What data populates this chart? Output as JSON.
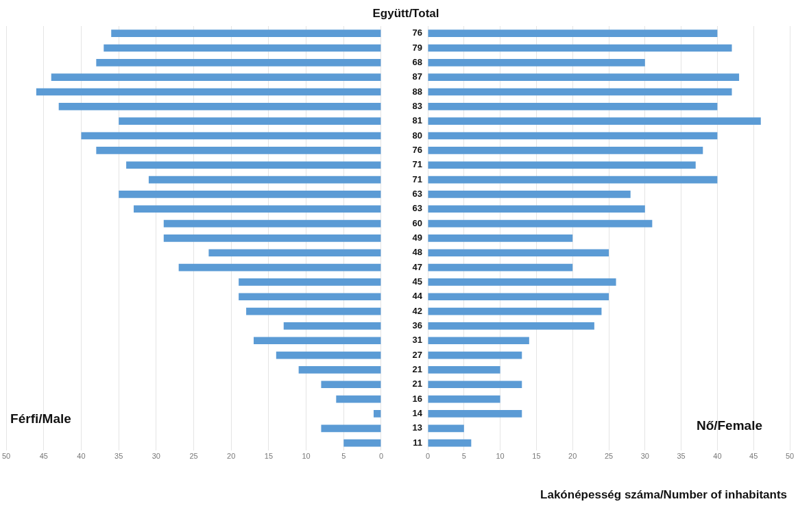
{
  "chart_data": [
    {
      "type": "bar",
      "orientation": "horizontal",
      "tick_labels": "x",
      "grid": "x",
      "categories": [
        "76",
        "79",
        "68",
        "87",
        "88",
        "83",
        "81",
        "80",
        "76",
        "71",
        "71",
        "63",
        "63",
        "60",
        "49",
        "48",
        "47",
        "45",
        "44",
        "42",
        "36",
        "31",
        "27",
        "21",
        "21",
        "16",
        "14",
        "13",
        "11"
      ],
      "xlim": [
        50,
        0
      ],
      "xticks": [
        50,
        45,
        40,
        35,
        30,
        25,
        20,
        15,
        10,
        5,
        0
      ],
      "series": [
        {
          "name": "Férfi/Male",
          "color": "#5b9bd5",
          "values": [
            36,
            37,
            38,
            44,
            46,
            43,
            35,
            40,
            38,
            34,
            31,
            35,
            33,
            29,
            29,
            23,
            27,
            19,
            19,
            18,
            13,
            17,
            14,
            11,
            8,
            6,
            1,
            8,
            5
          ]
        }
      ]
    },
    {
      "type": "bar",
      "orientation": "horizontal",
      "grid": "x",
      "title": "Együtt/Total",
      "xlabel": "Lakónépesség száma/Number of inhabitants",
      "categories": [
        "76",
        "79",
        "68",
        "87",
        "88",
        "83",
        "81",
        "80",
        "76",
        "71",
        "71",
        "63",
        "63",
        "60",
        "49",
        "48",
        "47",
        "45",
        "44",
        "42",
        "36",
        "31",
        "27",
        "21",
        "21",
        "16",
        "14",
        "13",
        "11"
      ],
      "xlim": [
        0,
        50
      ],
      "xticks": [
        0,
        5,
        10,
        15,
        20,
        25,
        30,
        35,
        40,
        45,
        50
      ],
      "series": [
        {
          "name": "Nő/Female",
          "color": "#5b9bd5",
          "values": [
            40,
            42,
            30,
            43,
            42,
            40,
            46,
            40,
            38,
            37,
            40,
            28,
            30,
            31,
            20,
            25,
            20,
            26,
            25,
            24,
            23,
            14,
            13,
            10,
            13,
            10,
            13,
            5,
            6
          ]
        }
      ]
    }
  ]
}
